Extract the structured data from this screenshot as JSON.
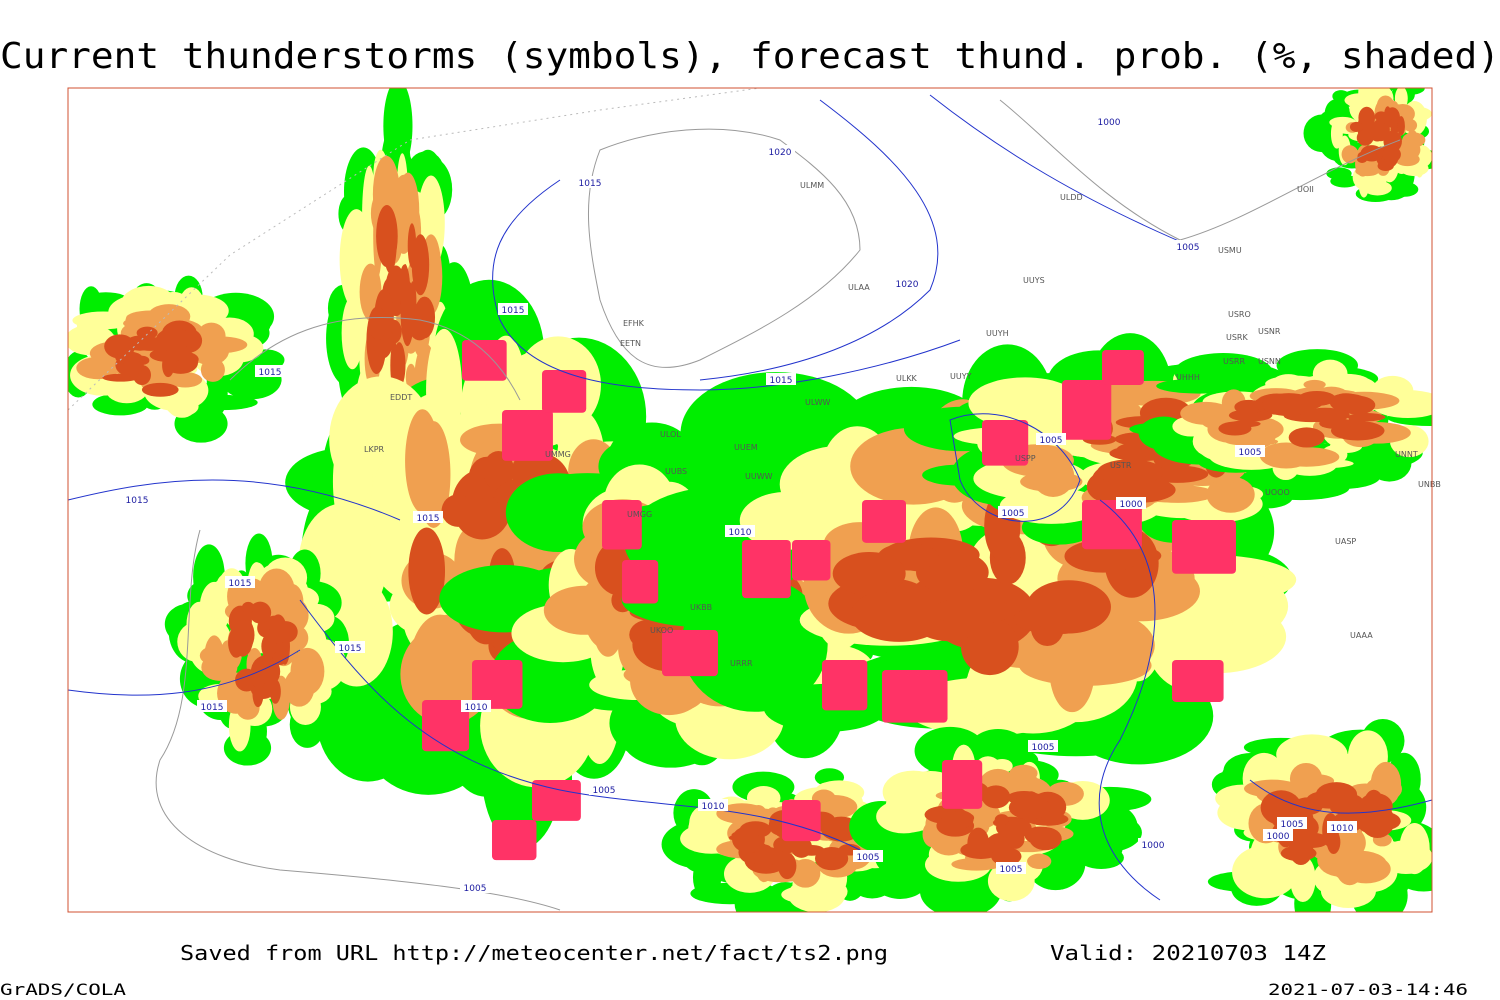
{
  "title": "Current thunderstorms (symbols), forecast thund. prob. (%, shaded)",
  "footer": {
    "source": "Saved from URL http://meteocenter.net/fact/ts2.png",
    "valid": "Valid: 20210703 14Z"
  },
  "credits": {
    "software": "GrADS/COLA",
    "timestamp": "2021-07-03-14:46"
  },
  "isobar_labels": [
    "1020",
    "1015",
    "1015",
    "1020",
    "1015",
    "1000",
    "1005",
    "1015",
    "1015",
    "1015",
    "1015",
    "1015",
    "1015",
    "1010",
    "1010",
    "1005",
    "1000",
    "1005",
    "1005",
    "1005",
    "1010",
    "1005",
    "1005",
    "1005",
    "1005",
    "1000",
    "1000",
    "1005",
    "1010"
  ],
  "stations": [
    "ULMM",
    "ULAA",
    "UUYS",
    "UUYH",
    "ULKK",
    "UUYY",
    "ULWW",
    "ULOL",
    "UUEM",
    "UUWW",
    "UUBS",
    "UMMG",
    "UMGG",
    "UKBB",
    "UKOO",
    "URRR",
    "USPP",
    "USTR",
    "UNNT",
    "UNBB",
    "UOOO",
    "UASP",
    "UAAA",
    "ULDD",
    "UOII",
    "USMU",
    "USRO",
    "USRK",
    "USNR",
    "USRR",
    "USNN",
    "EFHK",
    "EETN",
    "EDDT",
    "LKPR",
    "UHHH"
  ]
}
